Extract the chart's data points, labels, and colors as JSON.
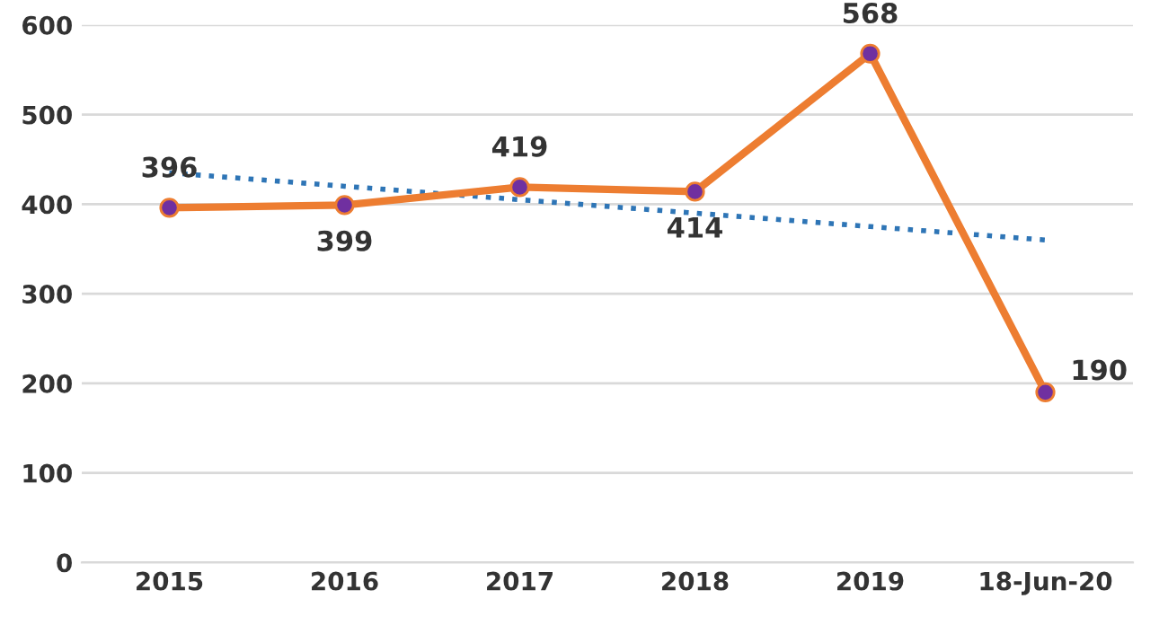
{
  "chart_data": {
    "type": "line",
    "categories": [
      "2015",
      "2016",
      "2017",
      "2018",
      "2019",
      "18-Jun-20"
    ],
    "series": [
      {
        "color": "#ed7d31",
        "values": [
          396,
          399,
          419,
          414,
          568,
          190
        ],
        "value_labels": [
          "396",
          "399",
          "419",
          "414",
          "568",
          "190"
        ],
        "marker": "circle",
        "line_style": "solid"
      },
      {
        "type": "line",
        "color": "#2e75b6",
        "values": [
          435,
          420,
          405,
          390,
          375,
          360
        ],
        "marker": "none",
        "line_style": "dotted"
      }
    ],
    "ylim": [
      0,
      600
    ],
    "yticks": [
      0,
      100,
      200,
      300,
      400,
      500,
      600
    ],
    "grid": "y",
    "legend": false
  }
}
